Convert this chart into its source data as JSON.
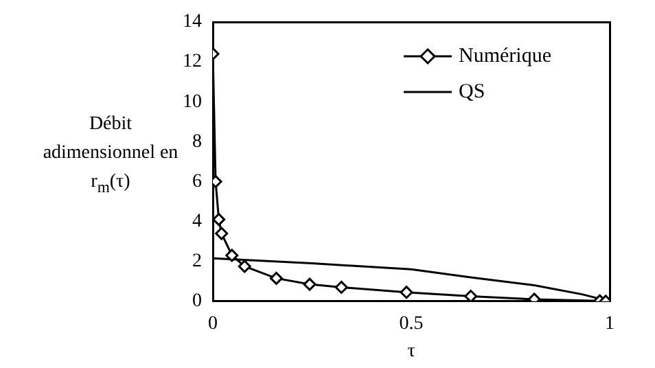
{
  "chart_data": {
    "type": "line",
    "xlabel": "τ",
    "ylabel": "Débit adimensionnel en r$_{m}$(τ)",
    "xlim": [
      0,
      1
    ],
    "xticks": [
      0,
      0.5,
      1
    ],
    "ylim": [
      0,
      14
    ],
    "yticks": [
      0,
      2,
      4,
      6,
      8,
      10,
      12,
      14
    ],
    "grid": false,
    "legend": "top right",
    "series": [
      {
        "name": "Numérique",
        "color": "#000000",
        "marker": "diamond",
        "x": [
          0,
          0.007,
          0.015,
          0.022,
          0.048,
          0.08,
          0.16,
          0.244,
          0.324,
          0.488,
          0.65,
          0.81,
          0.975,
          0.99
        ],
        "values": [
          12.4,
          6.0,
          4.1,
          3.4,
          2.3,
          1.75,
          1.15,
          0.85,
          0.7,
          0.45,
          0.25,
          0.1,
          0.02,
          0
        ]
      },
      {
        "name": "QS",
        "color": "#000000",
        "marker": "none",
        "x": [
          0,
          0.25,
          0.5,
          0.65,
          0.81,
          0.93,
          0.99
        ],
        "values": [
          2.15,
          1.9,
          1.6,
          1.2,
          0.8,
          0.35,
          0.05
        ]
      }
    ]
  }
}
